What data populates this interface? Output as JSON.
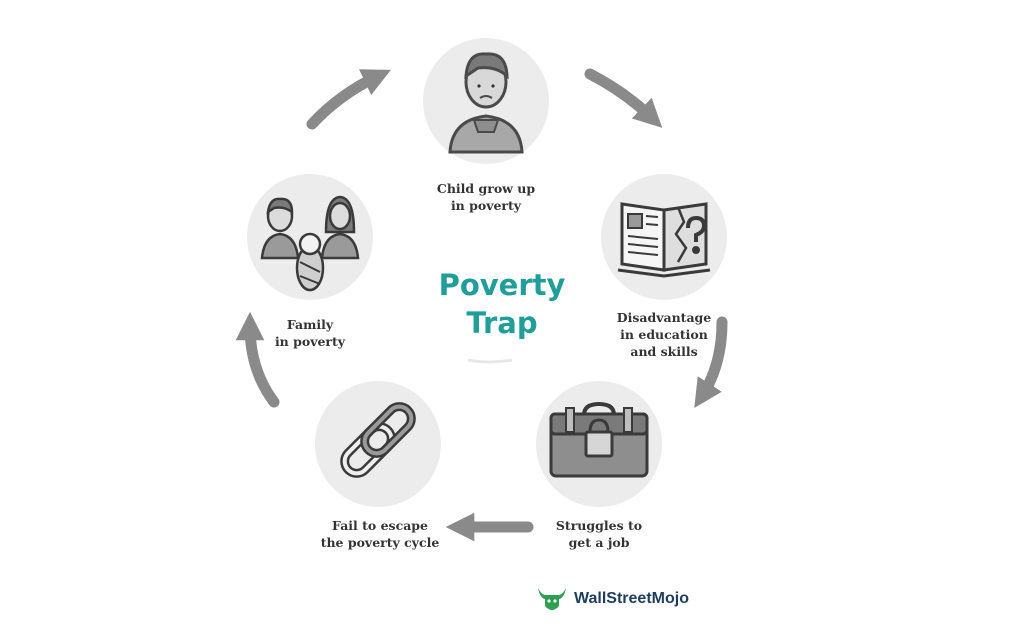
{
  "title_line1": "Poverty",
  "title_line2": "Trap",
  "nodes": [
    {
      "label": "Child grow up\nin poverty",
      "icon": "child-icon"
    },
    {
      "label": "Disadvantage\nin education\nand skills",
      "icon": "open-book-question-icon"
    },
    {
      "label": "Struggles to\nget a job",
      "icon": "locked-briefcase-icon"
    },
    {
      "label": "Fail to escape\nthe poverty cycle",
      "icon": "chain-links-icon"
    },
    {
      "label": "Family\nin poverty",
      "icon": "family-icon"
    }
  ],
  "brand": {
    "name": "WallStreetMojo",
    "icon": "bull-logo-icon"
  },
  "colors": {
    "title": "#1f9e9a",
    "arrow": "#8a8a8a",
    "circle": "#ececec",
    "label": "#333333",
    "brand_green": "#2e9e4f",
    "brand_text": "#1f3d5c"
  }
}
